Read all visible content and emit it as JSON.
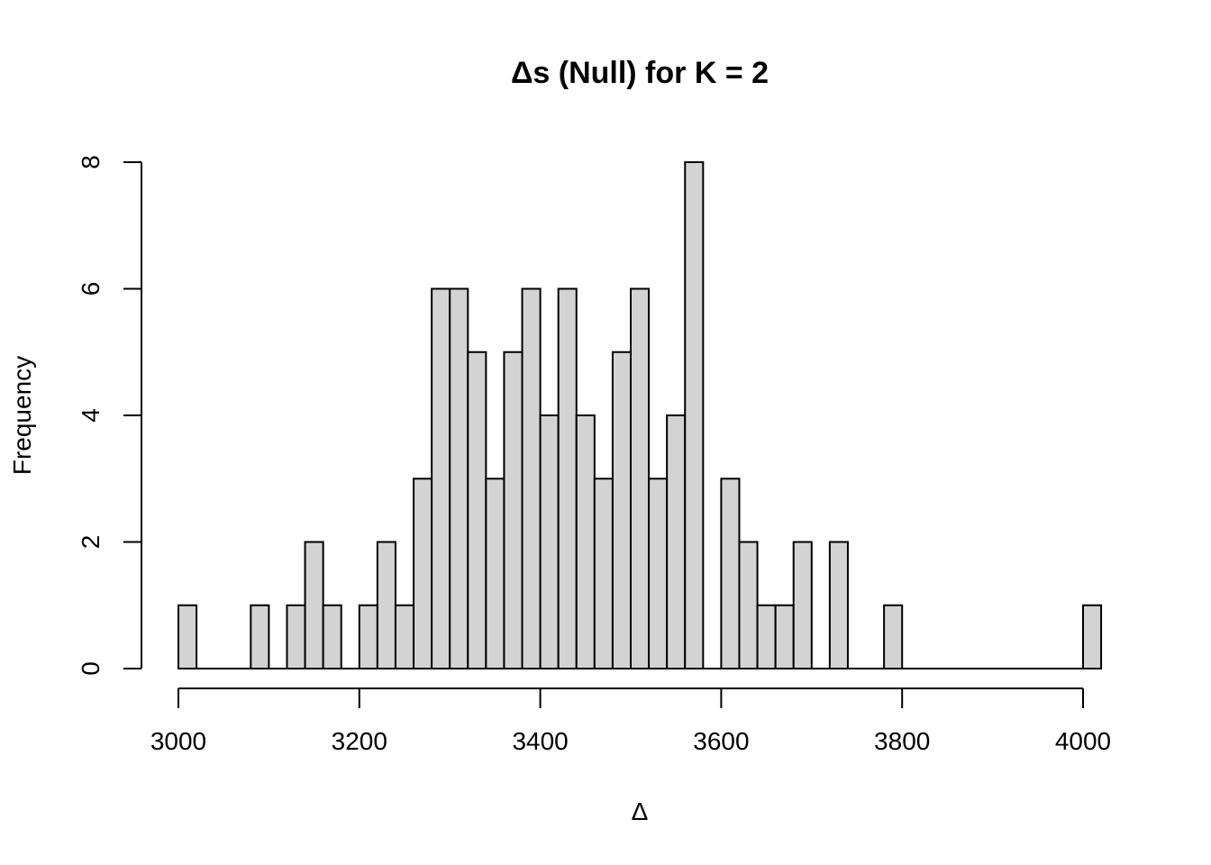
{
  "chart_data": {
    "type": "bar",
    "title": "Δs (Null) for K = 2",
    "xlabel": "Δ",
    "ylabel": "Frequency",
    "bin_width": 20,
    "bins": [
      [
        3000,
        3020
      ],
      [
        3020,
        3040
      ],
      [
        3040,
        3060
      ],
      [
        3060,
        3080
      ],
      [
        3080,
        3100
      ],
      [
        3100,
        3120
      ],
      [
        3120,
        3140
      ],
      [
        3140,
        3160
      ],
      [
        3160,
        3180
      ],
      [
        3180,
        3200
      ],
      [
        3200,
        3220
      ],
      [
        3220,
        3240
      ],
      [
        3240,
        3260
      ],
      [
        3260,
        3280
      ],
      [
        3280,
        3300
      ],
      [
        3300,
        3320
      ],
      [
        3320,
        3340
      ],
      [
        3340,
        3360
      ],
      [
        3360,
        3380
      ],
      [
        3380,
        3400
      ],
      [
        3400,
        3420
      ],
      [
        3420,
        3440
      ],
      [
        3440,
        3460
      ],
      [
        3460,
        3480
      ],
      [
        3480,
        3500
      ],
      [
        3500,
        3520
      ],
      [
        3520,
        3540
      ],
      [
        3540,
        3560
      ],
      [
        3560,
        3580
      ],
      [
        3580,
        3600
      ],
      [
        3600,
        3620
      ],
      [
        3620,
        3640
      ],
      [
        3640,
        3660
      ],
      [
        3660,
        3680
      ],
      [
        3680,
        3700
      ],
      [
        3700,
        3720
      ],
      [
        3720,
        3740
      ],
      [
        3740,
        3760
      ],
      [
        3760,
        3780
      ],
      [
        3780,
        3800
      ],
      [
        3800,
        3820
      ],
      [
        3820,
        3840
      ],
      [
        3840,
        3860
      ],
      [
        3860,
        3880
      ],
      [
        3880,
        3900
      ],
      [
        3900,
        3920
      ],
      [
        3920,
        3940
      ],
      [
        3940,
        3960
      ],
      [
        3960,
        3980
      ],
      [
        3980,
        4000
      ],
      [
        4000,
        4020
      ]
    ],
    "values": [
      1,
      0,
      0,
      0,
      1,
      0,
      1,
      2,
      1,
      0,
      1,
      2,
      1,
      3,
      6,
      6,
      5,
      3,
      5,
      6,
      4,
      6,
      4,
      3,
      5,
      6,
      3,
      4,
      8,
      0,
      3,
      2,
      1,
      1,
      2,
      0,
      2,
      0,
      0,
      1,
      0,
      0,
      0,
      0,
      0,
      0,
      0,
      0,
      0,
      0,
      1
    ],
    "xlim": [
      3000,
      4020
    ],
    "ylim": [
      0,
      8
    ],
    "xticks": [
      3000,
      3200,
      3400,
      3600,
      3800,
      4000
    ],
    "xtick_labels": [
      "3000",
      "3200",
      "3400",
      "3600",
      "3800",
      "4000"
    ],
    "yticks": [
      0,
      2,
      4,
      6,
      8
    ],
    "ytick_labels": [
      "0",
      "2",
      "4",
      "6",
      "8"
    ],
    "bar_color": "#d3d3d3",
    "border_color": "#000000",
    "grid": false
  }
}
